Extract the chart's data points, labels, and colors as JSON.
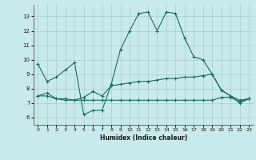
{
  "xlabel": "Humidex (Indice chaleur)",
  "xlim": [
    -0.5,
    23.5
  ],
  "ylim": [
    5.5,
    13.8
  ],
  "yticks": [
    6,
    7,
    8,
    9,
    10,
    11,
    12,
    13
  ],
  "xticks": [
    0,
    1,
    2,
    3,
    4,
    5,
    6,
    7,
    8,
    9,
    10,
    11,
    12,
    13,
    14,
    15,
    16,
    17,
    18,
    19,
    20,
    21,
    22,
    23
  ],
  "bg_color": "#c8eaea",
  "line_color": "#1a6b5e",
  "grid_color": "#aacccc",
  "line1_x": [
    0,
    1,
    2,
    3,
    4,
    5,
    6,
    7,
    8,
    9,
    10,
    11,
    12,
    13,
    14,
    15,
    16,
    17,
    18,
    19,
    20,
    21,
    22,
    23
  ],
  "line1_y": [
    9.7,
    8.5,
    8.8,
    9.3,
    9.8,
    6.2,
    6.5,
    6.5,
    8.3,
    10.7,
    12.0,
    13.2,
    13.3,
    12.0,
    13.3,
    13.2,
    11.5,
    10.2,
    10.0,
    9.0,
    7.9,
    7.5,
    7.0,
    7.3
  ],
  "line2_x": [
    0,
    1,
    2,
    3,
    4,
    5,
    6,
    7,
    8,
    9,
    10,
    11,
    12,
    13,
    14,
    15,
    16,
    17,
    18,
    19,
    20,
    21,
    22,
    23
  ],
  "line2_y": [
    7.5,
    7.7,
    7.3,
    7.3,
    7.2,
    7.4,
    7.8,
    7.5,
    8.2,
    8.3,
    8.4,
    8.5,
    8.5,
    8.6,
    8.7,
    8.7,
    8.8,
    8.8,
    8.9,
    9.0,
    7.9,
    7.5,
    7.2,
    7.3
  ],
  "line3_x": [
    0,
    1,
    2,
    3,
    4,
    5,
    6,
    7,
    8,
    9,
    10,
    11,
    12,
    13,
    14,
    15,
    16,
    17,
    18,
    19,
    20,
    21,
    22,
    23
  ],
  "line3_y": [
    7.5,
    7.5,
    7.3,
    7.2,
    7.2,
    7.2,
    7.2,
    7.2,
    7.2,
    7.2,
    7.2,
    7.2,
    7.2,
    7.2,
    7.2,
    7.2,
    7.2,
    7.2,
    7.2,
    7.2,
    7.4,
    7.4,
    7.1,
    7.3
  ]
}
